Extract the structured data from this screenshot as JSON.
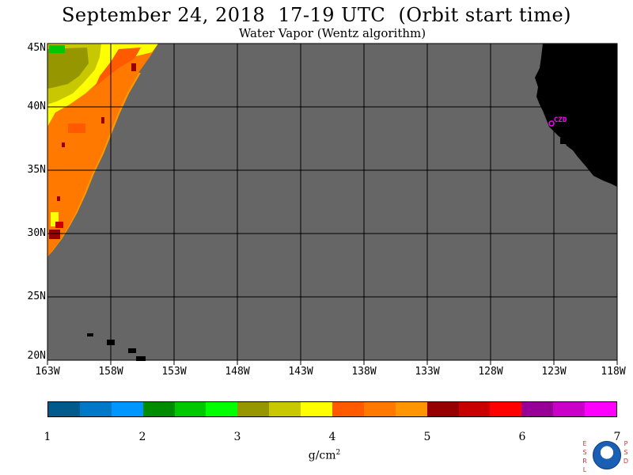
{
  "title": "September 24, 2018  17-19 UTC  (Orbit start time)",
  "subtitle": "Water Vapor (Wentz algorithm)",
  "map": {
    "lat_labels": [
      "45N",
      "40N",
      "35N",
      "30N",
      "25N",
      "20N"
    ],
    "lon_labels": [
      "163W",
      "158W",
      "153W",
      "148W",
      "143W",
      "138W",
      "133W",
      "128W",
      "123W",
      "118W"
    ],
    "site_label": "CZD",
    "colors": {
      "no_data_ocean": "#666666",
      "land": "#000000",
      "grid": "#000000",
      "site_marker": "#ff00ff"
    }
  },
  "colorbar": {
    "ticks": [
      "1",
      "2",
      "3",
      "4",
      "5",
      "6",
      "7"
    ],
    "units": "g/cm",
    "units_sup": "2",
    "colors": [
      "#005a8c",
      "#0078c8",
      "#0096ff",
      "#008c00",
      "#00c800",
      "#00ff00",
      "#969600",
      "#c8c800",
      "#ffff00",
      "#ff5a00",
      "#ff7800",
      "#ff9600",
      "#960000",
      "#c80000",
      "#ff0000",
      "#960096",
      "#c800c8",
      "#ff00ff"
    ]
  },
  "logo": {
    "left_text": "ESRL",
    "right_text": "PSD"
  }
}
